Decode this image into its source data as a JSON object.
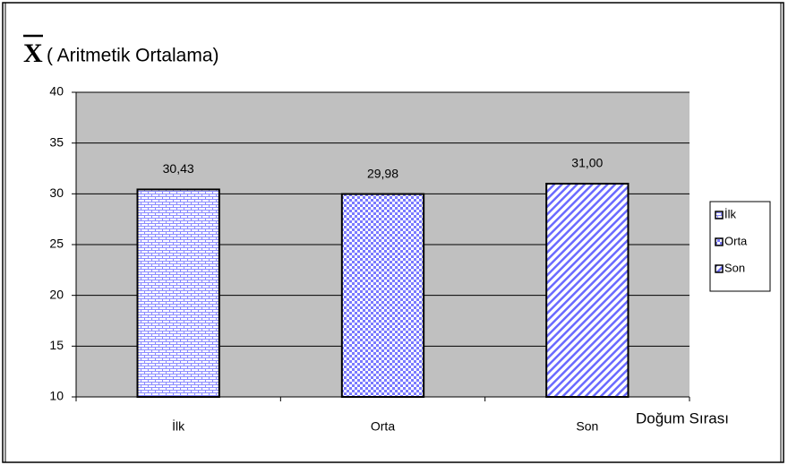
{
  "chart_data": {
    "type": "bar",
    "title_symbol": "X",
    "title": "( Aritmetik Ortalama)",
    "x_label": "Doğum Sırası",
    "categories": [
      "İlk",
      "Orta",
      "Son"
    ],
    "values": [
      30.43,
      29.98,
      31.0
    ],
    "value_labels": [
      "30,43",
      "29,98",
      "31,00"
    ],
    "color": "#7070ff",
    "ylim": [
      10,
      40
    ],
    "yticks": [
      10,
      15,
      20,
      25,
      30,
      35,
      40
    ],
    "grid": true,
    "legend": "right"
  }
}
